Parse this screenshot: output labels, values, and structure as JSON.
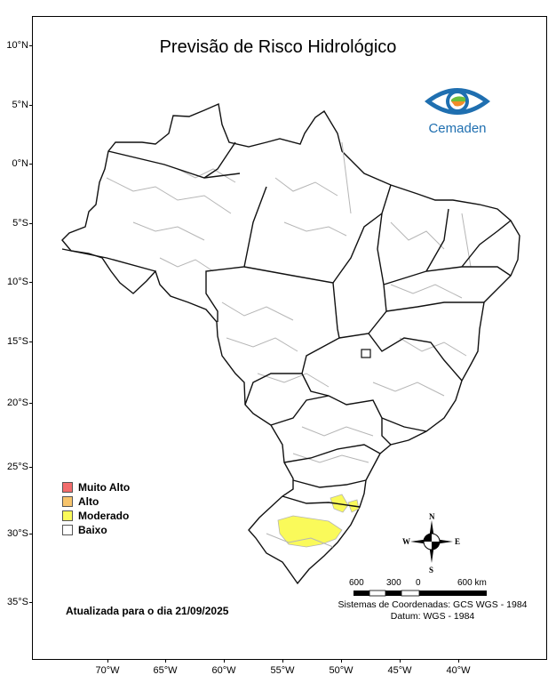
{
  "title": "Previsão de Risco Hidrológico",
  "latitude_labels": [
    "10°N",
    "5°N",
    "0°N",
    "5°S",
    "10°S",
    "15°S",
    "20°S",
    "25°S",
    "30°S",
    "35°S"
  ],
  "longitude_labels": [
    "70°W",
    "65°W",
    "60°W",
    "55°W",
    "50°W",
    "45°W",
    "40°W"
  ],
  "logo": {
    "text": "Cemaden",
    "colors": {
      "blue": "#1f6fb0",
      "green": "#6cbf3b",
      "orange": "#f28c28"
    }
  },
  "legend": [
    {
      "label": "Muito Alto",
      "color": "#f26c6c"
    },
    {
      "label": "Alto",
      "color": "#f7c46c"
    },
    {
      "label": "Moderado",
      "color": "#fafa5a"
    },
    {
      "label": "Baixo",
      "color": "#ffffff"
    }
  ],
  "updated": "Atualizada para o dia 21/09/2025",
  "scale": {
    "labels": [
      "600",
      "300",
      "0",
      "600 km"
    ]
  },
  "crs": {
    "line1": "Sistemas de Coordenadas: GCS WGS - 1984",
    "line2": "Datum: WGS - 1984"
  },
  "compass": {
    "n": "N",
    "s": "S",
    "e": "E",
    "w": "W",
    "icon": "compass-rose-icon"
  },
  "map": {
    "risk_regions_moderado": "Rio Grande do Sul / Santa Catarina",
    "base_color": "#ffffff",
    "border_major": "#111111",
    "border_minor": "#b5b5b5"
  }
}
